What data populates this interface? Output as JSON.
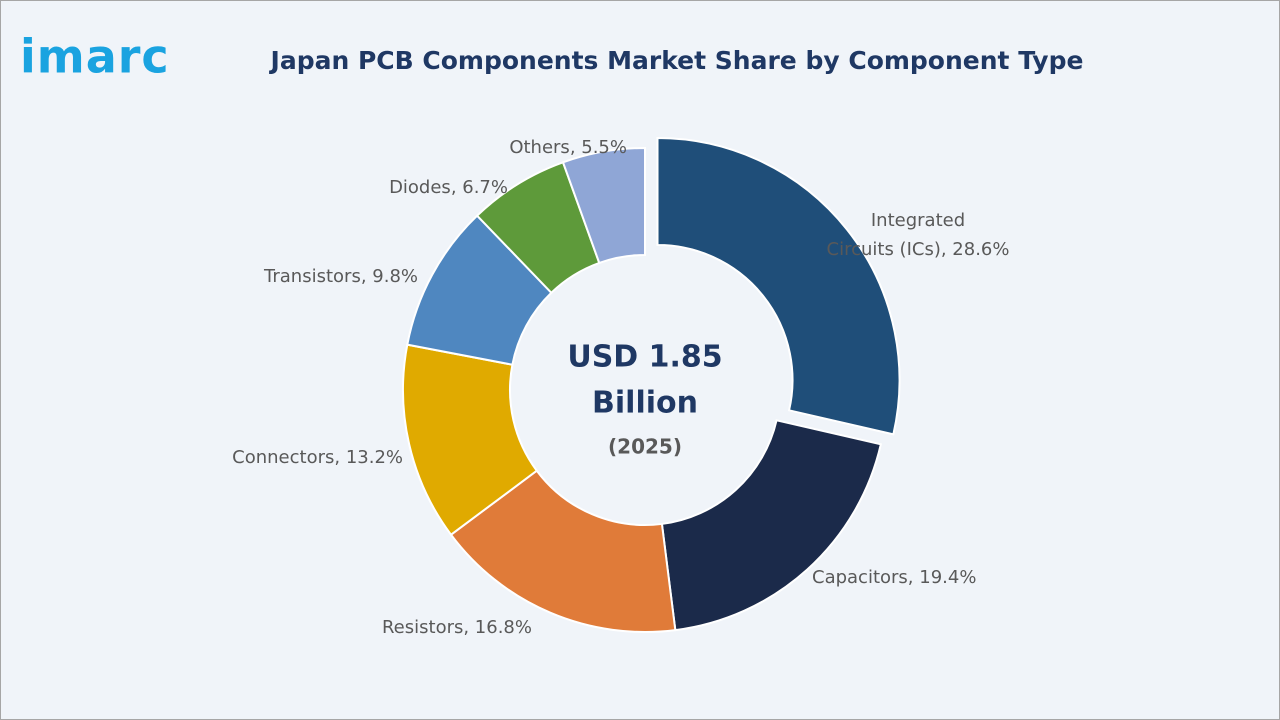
{
  "brand": "imarc",
  "chart_data": {
    "type": "donut",
    "title": "Japan PCB Components Market Share by Component Type",
    "center_text": [
      "USD 1.85",
      "Billion",
      "(2025)"
    ],
    "values": [
      28.6,
      19.4,
      16.8,
      13.2,
      9.8,
      6.7,
      5.5
    ],
    "value_labels": [
      "Integrated Circuits (ICs), 28.6%",
      "Capacitors, 19.4%",
      "Resistors, 16.8%",
      "Connectors, 13.2%",
      "Transistors, 9.8%",
      "Diodes, 6.7%",
      "Others, 5.5%"
    ],
    "colors": [
      "#1f4e79",
      "#1b2a4a",
      "#e07b39",
      "#e0aa00",
      "#4f87c0",
      "#5e9a3a",
      "#8fa6d6"
    ],
    "exploded": [
      0
    ]
  }
}
